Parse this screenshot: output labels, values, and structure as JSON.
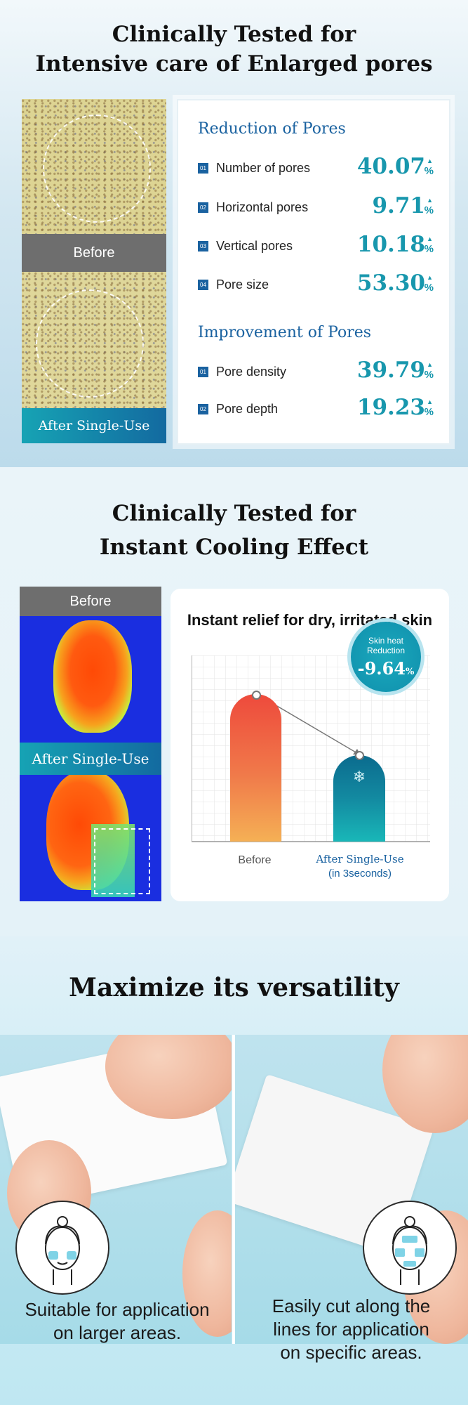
{
  "section1": {
    "title_line1": "Clinically Tested for",
    "title_line2": "Intensive care of Enlarged pores",
    "before_label": "Before",
    "after_label": "After Single-Use",
    "reduction_title": "Reduction of Pores",
    "reduction": [
      {
        "num": "01",
        "label": "Number of pores",
        "value": "40.07"
      },
      {
        "num": "02",
        "label": "Horizontal pores",
        "value": "9.71"
      },
      {
        "num": "03",
        "label": "Vertical pores",
        "value": "10.18"
      },
      {
        "num": "04",
        "label": "Pore size",
        "value": "53.30"
      }
    ],
    "improvement_title": "Improvement of Pores",
    "improvement": [
      {
        "num": "01",
        "label": "Pore density",
        "value": "39.79"
      },
      {
        "num": "02",
        "label": "Pore depth",
        "value": "19.23"
      }
    ],
    "unit": "%",
    "arrow": "▲"
  },
  "section2": {
    "title_line1": "Clinically Tested for",
    "title_line2": "Instant Cooling Effect",
    "before_label": "Before",
    "after_label": "After Single-Use",
    "card_title": "Instant relief for dry, irritated skin",
    "badge_line1": "Skin heat",
    "badge_line2": "Reduction",
    "badge_value": "-9.64",
    "badge_unit": "%",
    "bar_before_label": "Before",
    "bar_after_label": "After Single-Use",
    "bar_after_sub": "(in 3seconds)",
    "snowflake": "❄"
  },
  "section3": {
    "title": "Maximize its versatility",
    "caption_left_1": "Suitable for application",
    "caption_left_2": "on larger areas.",
    "caption_right_1": "Easily cut along the",
    "caption_right_2": "lines for application",
    "caption_right_3": "on specific areas."
  }
}
